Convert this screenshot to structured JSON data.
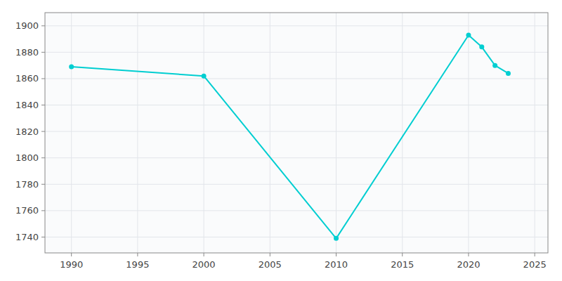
{
  "chart_data": {
    "type": "line",
    "x": [
      1990,
      2000,
      2010,
      2020,
      2021,
      2022,
      2023
    ],
    "values": [
      1869,
      1862,
      1739,
      1893,
      1884,
      1870,
      1864
    ],
    "color": "#00CED1",
    "marker": "circle",
    "xlim": [
      1988,
      2026
    ],
    "ylim": [
      1728,
      1910
    ],
    "xticks": [
      1990,
      1995,
      2000,
      2005,
      2010,
      2015,
      2020,
      2025
    ],
    "yticks": [
      1740,
      1760,
      1780,
      1800,
      1820,
      1840,
      1860,
      1880,
      1900
    ],
    "grid": true
  }
}
